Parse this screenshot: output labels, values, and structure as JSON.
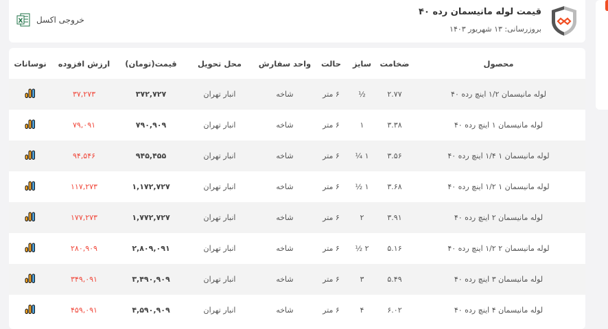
{
  "header": {
    "title": "قیمت لوله مانیسمان رده ۴۰",
    "updated": "بروزرسانی: ۱۳ شهریور ۱۴۰۳",
    "excel_label": "خروجی اکسل",
    "logo_icon": "shield-logo",
    "excel_icon": "excel-icon"
  },
  "colors": {
    "accent": "#f04e23",
    "vat": "#f0473a"
  },
  "table": {
    "columns": [
      "محصول",
      "ضخامت",
      "سایز",
      "حالت",
      "واحد سفارش",
      "محل تحویل",
      "قیمت(تومان)",
      "ارزش افزوده",
      "نوسانات"
    ],
    "rows": [
      {
        "product": "لوله مانیسمان ۱/۲ اینچ رده ۴۰",
        "thickness": "۲.۷۷",
        "size": "½",
        "state": "۶ متر",
        "unit": "شاخه",
        "delivery": "انبار تهران",
        "price": "۳۷۲,۷۲۷",
        "vat": "۳۷,۲۷۳"
      },
      {
        "product": "لوله مانیسمان ۱ اینچ رده ۴۰",
        "thickness": "۳.۳۸",
        "size": "۱",
        "state": "۶ متر",
        "unit": "شاخه",
        "delivery": "انبار تهران",
        "price": "۷۹۰,۹۰۹",
        "vat": "۷۹,۰۹۱"
      },
      {
        "product": "لوله مانیسمان ۱ ۱/۴ اینچ رده ۴۰",
        "thickness": "۳.۵۶",
        "size": "۱ ¼",
        "state": "۶ متر",
        "unit": "شاخه",
        "delivery": "انبار تهران",
        "price": "۹۴۵,۴۵۵",
        "vat": "۹۴,۵۴۶"
      },
      {
        "product": "لوله مانیسمان ۱ ۱/۲ اینچ رده ۴۰",
        "thickness": "۳.۶۸",
        "size": "۱ ½",
        "state": "۶ متر",
        "unit": "شاخه",
        "delivery": "انبار تهران",
        "price": "۱,۱۷۲,۷۲۷",
        "vat": "۱۱۷,۲۷۳"
      },
      {
        "product": "لوله مانیسمان ۲ اینچ رده ۴۰",
        "thickness": "۳.۹۱",
        "size": "۲",
        "state": "۶ متر",
        "unit": "شاخه",
        "delivery": "انبار تهران",
        "price": "۱,۷۷۲,۷۲۷",
        "vat": "۱۷۷,۲۷۳"
      },
      {
        "product": "لوله مانیسمان ۲ ۱/۲ اینچ رده ۴۰",
        "thickness": "۵.۱۶",
        "size": "۲ ½",
        "state": "۶ متر",
        "unit": "شاخه",
        "delivery": "انبار تهران",
        "price": "۲,۸۰۹,۰۹۱",
        "vat": "۲۸۰,۹۰۹"
      },
      {
        "product": "لوله مانیسمان ۳ اینچ رده ۴۰",
        "thickness": "۵.۴۹",
        "size": "۳",
        "state": "۶ متر",
        "unit": "شاخه",
        "delivery": "انبار تهران",
        "price": "۳,۴۹۰,۹۰۹",
        "vat": "۳۴۹,۰۹۱"
      },
      {
        "product": "لوله مانیسمان ۴ اینچ رده ۴۰",
        "thickness": "۶.۰۲",
        "size": "۴",
        "state": "۶ متر",
        "unit": "شاخه",
        "delivery": "انبار تهران",
        "price": "۴,۵۹۰,۹۰۹",
        "vat": "۴۵۹,۰۹۱"
      }
    ],
    "chart_icon": "bar-chart-icon"
  }
}
